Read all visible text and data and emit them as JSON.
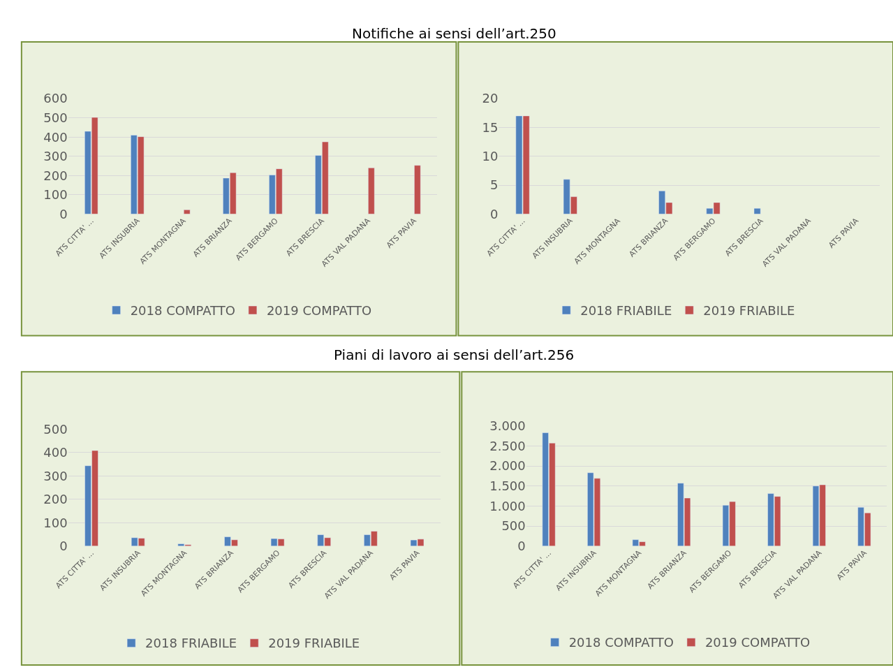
{
  "chart_data": [
    {
      "type": "bar",
      "title": "Notifiche ai sensi dell’art.250",
      "categories": [
        "ATS CITTA' ...",
        "ATS INSUBRIA",
        "ATS MONTAGNA",
        "ATS BRIANZA",
        "ATS BERGAMO",
        "ATS BRESCIA",
        "ATS VAL PADANA",
        "ATS PAVIA"
      ],
      "series": [
        {
          "name": "2018 COMPATTO",
          "color": "#4f81bd",
          "values": [
            430,
            410,
            null,
            187,
            203,
            305,
            null,
            null
          ]
        },
        {
          "name": "2019 COMPATTO",
          "color": "#c0504d",
          "values": [
            502,
            402,
            22,
            215,
            235,
            375,
            240,
            253
          ]
        }
      ],
      "ylim": [
        0,
        600
      ],
      "yticks": [
        0,
        100,
        200,
        300,
        400,
        500,
        600
      ],
      "grid": "y",
      "legend": "bottom"
    },
    {
      "type": "bar",
      "categories": [
        "ATS CITTA' ...",
        "ATS INSUBRIA",
        "ATS MONTAGNA",
        "ATS BRIANZA",
        "ATS BERGAMO",
        "ATS BRESCIA",
        "ATS VAL PADANA",
        "ATS PAVIA"
      ],
      "series": [
        {
          "name": "2018 FRIABILE",
          "color": "#4f81bd",
          "values": [
            17,
            6,
            null,
            4,
            1,
            1,
            null,
            null
          ]
        },
        {
          "name": "2019 FRIABILE",
          "color": "#c0504d",
          "values": [
            17,
            3,
            null,
            2,
            2,
            null,
            null,
            null
          ]
        }
      ],
      "ylim": [
        0,
        20
      ],
      "yticks": [
        0,
        5,
        10,
        15,
        20
      ],
      "grid": "y",
      "legend": "bottom"
    },
    {
      "type": "bar",
      "title": "Piani di lavoro ai sensi dell’art.256",
      "categories": [
        "ATS CITTA' ...",
        "ATS INSUBRIA",
        "ATS MONTAGNA",
        "ATS BRIANZA",
        "ATS BERGAMO",
        "ATS BRESCIA",
        "ATS VAL PADANA",
        "ATS PAVIA"
      ],
      "series": [
        {
          "name": "2018 FRIABILE",
          "color": "#4f81bd",
          "values": [
            344,
            36,
            10,
            40,
            32,
            49,
            49,
            26
          ]
        },
        {
          "name": "2019 FRIABILE",
          "color": "#c0504d",
          "values": [
            409,
            34,
            6,
            27,
            31,
            36,
            64,
            30
          ]
        }
      ],
      "ylim": [
        0,
        500
      ],
      "yticks": [
        0,
        100,
        200,
        300,
        400,
        500
      ],
      "grid": "y",
      "legend": "bottom"
    },
    {
      "type": "bar",
      "categories": [
        "ATS CITTA' ...",
        "ATS INSUBRIA",
        "ATS MONTAGNA",
        "ATS BRIANZA",
        "ATS BERGAMO",
        "ATS BRESCIA",
        "ATS VAL PADANA",
        "ATS PAVIA"
      ],
      "series": [
        {
          "name": "2018 COMPATTO",
          "color": "#4f81bd",
          "values": [
            2830,
            1830,
            160,
            1570,
            1020,
            1310,
            1500,
            970
          ]
        },
        {
          "name": "2019 COMPATTO",
          "color": "#c0504d",
          "values": [
            2570,
            1690,
            110,
            1200,
            1110,
            1240,
            1530,
            830
          ]
        }
      ],
      "ylim": [
        0,
        3000
      ],
      "yticks": [
        0,
        {
          "value": 500,
          "label": "500"
        },
        {
          "value": 1000,
          "label": "1.000"
        },
        {
          "value": 1500,
          "label": "1.500"
        },
        {
          "value": 2000,
          "label": "2.000"
        },
        {
          "value": 2500,
          "label": "2.500"
        },
        {
          "value": 3000,
          "label": "3.000"
        }
      ],
      "grid": "y",
      "legend": "bottom"
    }
  ]
}
